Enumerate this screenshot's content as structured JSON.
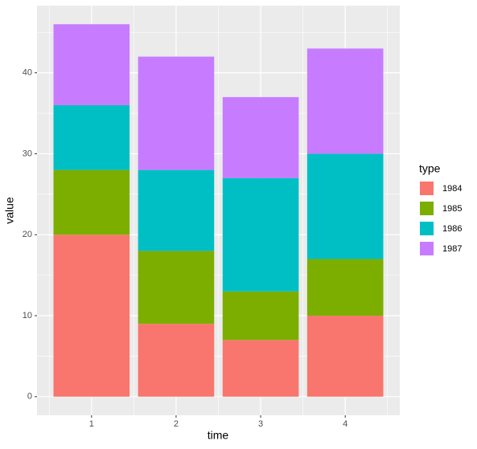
{
  "chart_data": {
    "type": "bar",
    "stacked": true,
    "x_label": "time",
    "y_label": "value",
    "legend_title": "type",
    "legend_position": "right",
    "x": [
      1,
      2,
      3,
      4
    ],
    "series": [
      {
        "name": "1984",
        "color": "#F8766D",
        "values": [
          20,
          9,
          7,
          10
        ]
      },
      {
        "name": "1985",
        "color": "#7CAE00",
        "values": [
          8,
          9,
          6,
          7
        ]
      },
      {
        "name": "1986",
        "color": "#00BFC4",
        "values": [
          8,
          10,
          14,
          13
        ]
      },
      {
        "name": "1987",
        "color": "#C77CFF",
        "values": [
          10,
          14,
          10,
          13
        ]
      }
    ],
    "bar_width": 0.9,
    "xlim": [
      0.355,
      4.645
    ],
    "xticks": [
      1,
      2,
      3,
      4
    ],
    "x_minor_ticks": [
      0.5,
      1.5,
      2.5,
      3.5,
      4.5
    ],
    "ylim": [
      -2.3,
      48.3
    ],
    "yticks": [
      0,
      10,
      20,
      30,
      40
    ],
    "y_minor_ticks": [
      5,
      15,
      25,
      35,
      45
    ],
    "grid": true
  }
}
